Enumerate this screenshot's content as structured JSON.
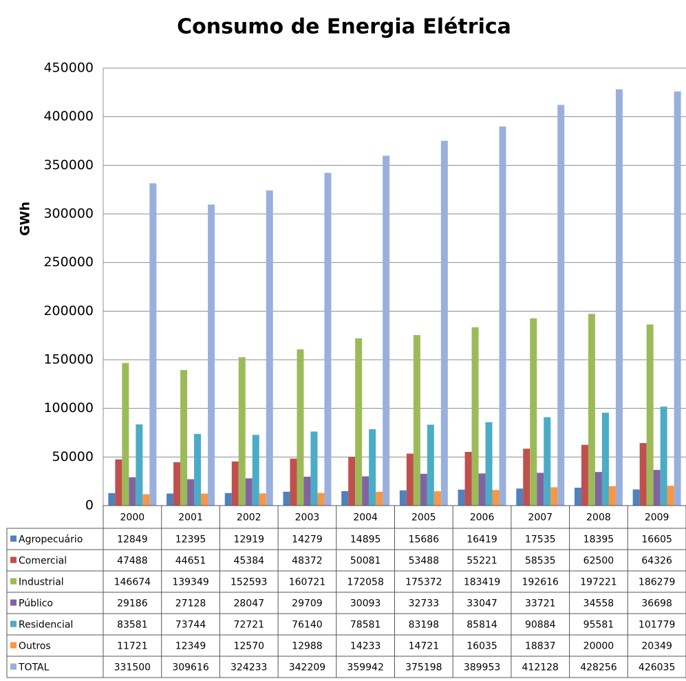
{
  "chart_data": {
    "type": "bar",
    "title": "Consumo de Energia Elétrica",
    "y_label": "GWh",
    "categories": [
      "2000",
      "2001",
      "2002",
      "2003",
      "2004",
      "2005",
      "2006",
      "2007",
      "2008",
      "2009"
    ],
    "series": [
      {
        "name": "Agropecuário",
        "color": "#4f81bd",
        "values": [
          12849,
          12395,
          12919,
          14279,
          14895,
          15686,
          16419,
          17535,
          18395,
          16605
        ]
      },
      {
        "name": "Comercial",
        "color": "#c0504d",
        "values": [
          47488,
          44651,
          45384,
          48372,
          50081,
          53488,
          55221,
          58535,
          62500,
          64326
        ]
      },
      {
        "name": "Industrial",
        "color": "#9bbb59",
        "values": [
          146674,
          139349,
          152593,
          160721,
          172058,
          175372,
          183419,
          192616,
          197221,
          186279
        ]
      },
      {
        "name": "Público",
        "color": "#8064a2",
        "values": [
          29186,
          27128,
          28047,
          29709,
          30093,
          32733,
          33047,
          33721,
          34558,
          36698
        ]
      },
      {
        "name": "Residencial",
        "color": "#4bacc6",
        "values": [
          83581,
          73744,
          72721,
          76140,
          78581,
          83198,
          85814,
          90884,
          95581,
          101779
        ]
      },
      {
        "name": "Outros",
        "color": "#f79646",
        "values": [
          11721,
          12349,
          12570,
          12988,
          14233,
          14721,
          16035,
          18837,
          20000,
          20349
        ]
      },
      {
        "name": "TOTAL",
        "color": "#9ab0dc",
        "values": [
          331500,
          309616,
          324233,
          342209,
          359942,
          375198,
          389953,
          412128,
          428256,
          426035
        ]
      }
    ],
    "ylim": [
      0,
      450000
    ],
    "yticks": [
      0,
      50000,
      100000,
      150000,
      200000,
      250000,
      300000,
      350000,
      400000,
      450000
    ],
    "grid": true
  }
}
